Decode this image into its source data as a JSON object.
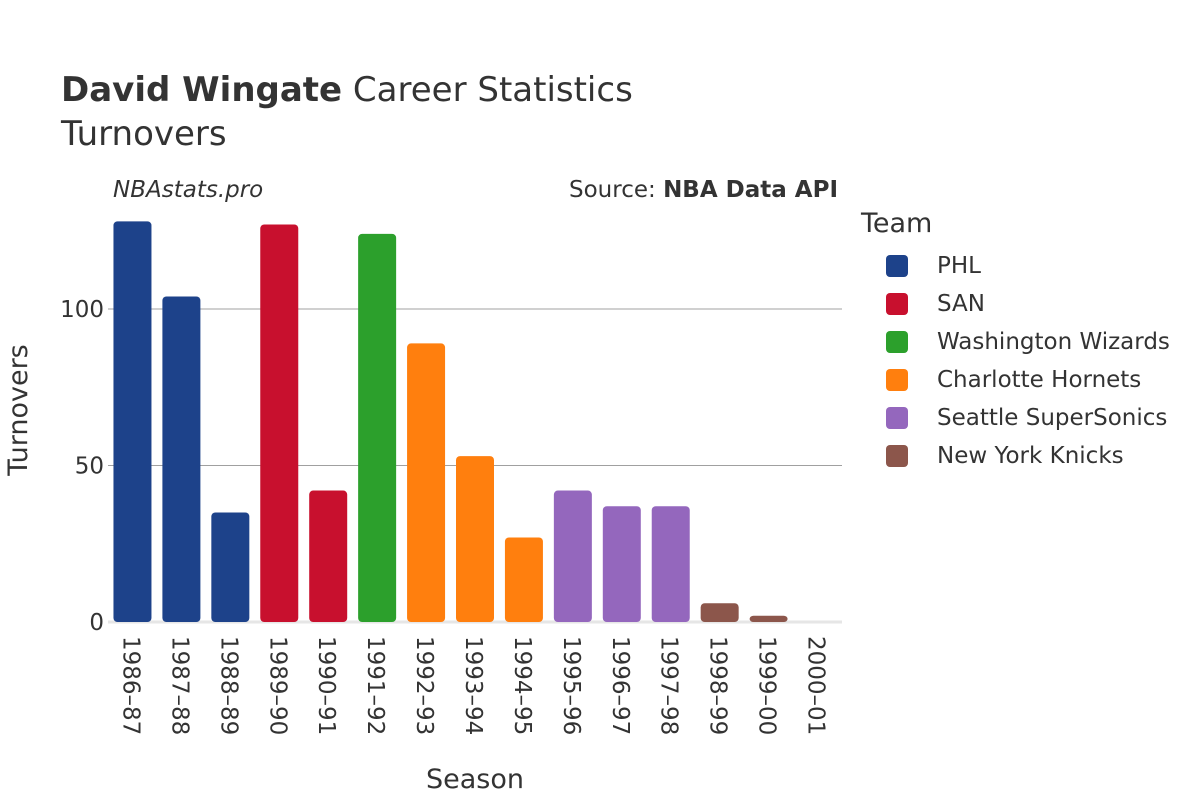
{
  "title": {
    "name": "David Wingate",
    "rest": " Career Statistics",
    "subtitle": "Turnovers"
  },
  "watermark": "NBAstats.pro",
  "source": {
    "prefix": "Source: ",
    "name": "NBA Data API"
  },
  "legend": {
    "title": "Team",
    "items": [
      {
        "label": "PHL",
        "color": "#1d428a"
      },
      {
        "label": "SAN",
        "color": "#c8102e"
      },
      {
        "label": "Washington Wizards",
        "color": "#2ca02c"
      },
      {
        "label": "Charlotte Hornets",
        "color": "#ff7f0e"
      },
      {
        "label": "Seattle SuperSonics",
        "color": "#9467bd"
      },
      {
        "label": "New York Knicks",
        "color": "#8c564b"
      }
    ]
  },
  "chart_data": {
    "type": "bar",
    "xlabel": "Season",
    "ylabel": "Turnovers",
    "ylim": [
      0,
      128
    ],
    "yticks": [
      0,
      50,
      100
    ],
    "grid": true,
    "legend_position": "right",
    "categories": [
      "1986–87",
      "1987–88",
      "1988–89",
      "1989–90",
      "1990–91",
      "1991–92",
      "1992–93",
      "1993–94",
      "1994–95",
      "1995–96",
      "1996–97",
      "1997–98",
      "1998–99",
      "1999–00",
      "2000–01"
    ],
    "values": [
      128,
      104,
      35,
      127,
      42,
      124,
      89,
      53,
      27,
      42,
      37,
      37,
      6,
      2,
      0
    ],
    "teams": [
      "PHL",
      "PHL",
      "PHL",
      "SAN",
      "SAN",
      "Washington Wizards",
      "Charlotte Hornets",
      "Charlotte Hornets",
      "Charlotte Hornets",
      "Seattle SuperSonics",
      "Seattle SuperSonics",
      "Seattle SuperSonics",
      "New York Knicks",
      "New York Knicks",
      "New York Knicks"
    ]
  }
}
